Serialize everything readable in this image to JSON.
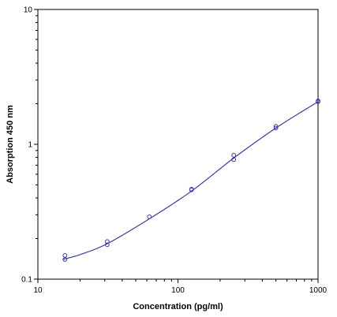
{
  "chart_data": {
    "type": "scatter",
    "title": "",
    "xlabel": "Concentration (pg/ml)",
    "ylabel": "Absorption 450 nm",
    "xscale": "log",
    "yscale": "log",
    "xlim": [
      10,
      1000
    ],
    "ylim": [
      0.1,
      10
    ],
    "x_ticks": [
      10,
      100,
      1000
    ],
    "x_tick_labels": [
      "10",
      "100",
      "1000"
    ],
    "y_ticks": [
      0.1,
      1,
      10
    ],
    "y_tick_labels": [
      "0.1",
      "1",
      "10"
    ],
    "grid": false,
    "legend": "none",
    "series": [
      {
        "kind": "points",
        "marker": "open-circle",
        "color": "#3b3b9e",
        "x": [
          15.6,
          15.6,
          31.25,
          31.25,
          62.5,
          125,
          125,
          250,
          250,
          500,
          500,
          1000,
          1000
        ],
        "y": [
          0.15,
          0.14,
          0.19,
          0.18,
          0.29,
          0.465,
          0.46,
          0.83,
          0.77,
          1.36,
          1.32,
          2.1,
          2.07
        ]
      },
      {
        "kind": "fit-curve",
        "color": "#3b3b9e",
        "x": [
          15,
          20,
          31.25,
          62.5,
          125,
          250,
          500,
          1000
        ],
        "y": [
          0.14,
          0.152,
          0.183,
          0.28,
          0.45,
          0.79,
          1.32,
          2.07
        ]
      }
    ]
  }
}
